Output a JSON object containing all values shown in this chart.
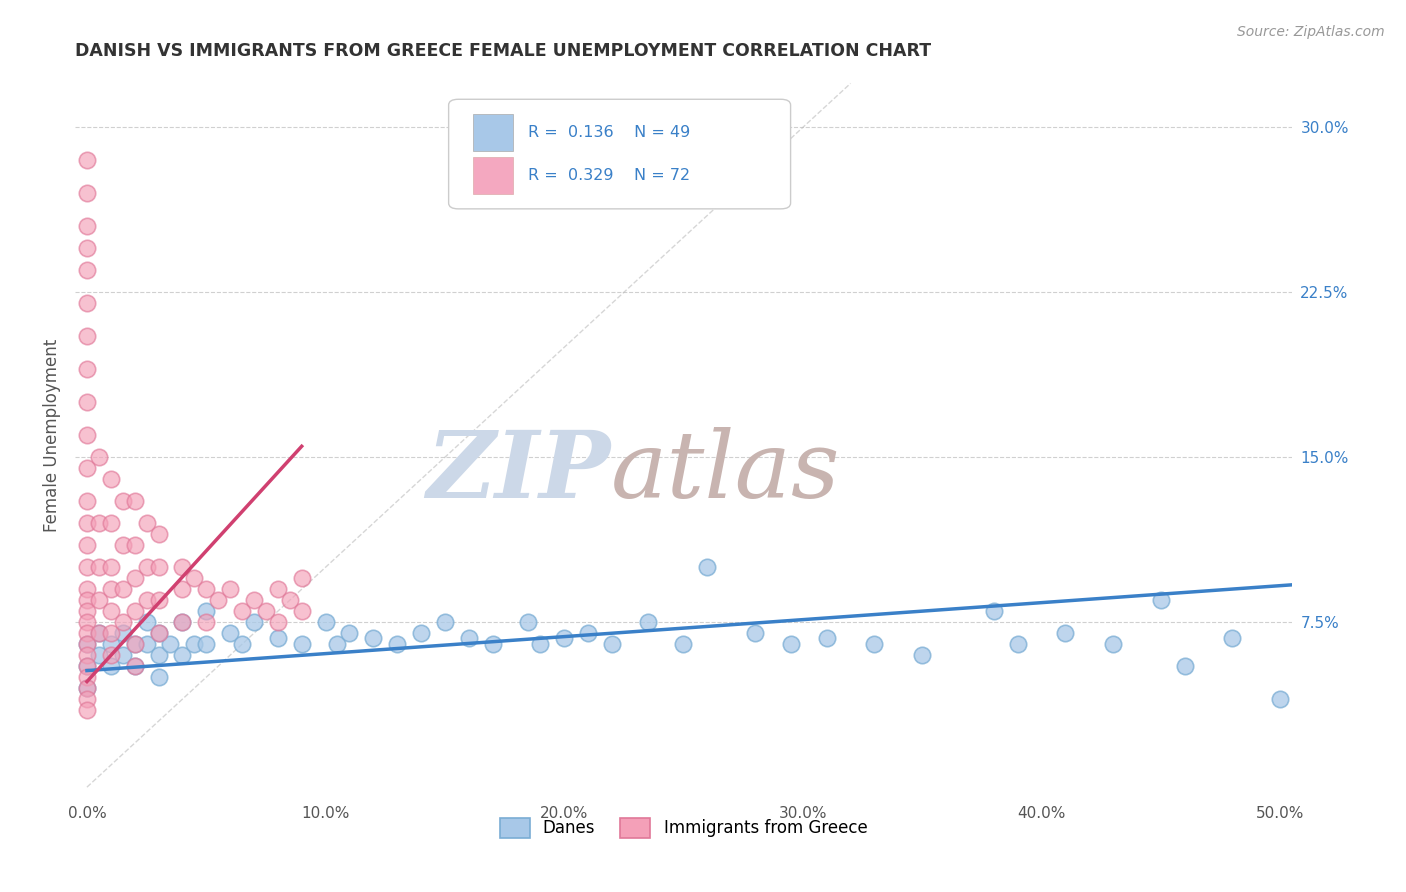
{
  "title": "DANISH VS IMMIGRANTS FROM GREECE FEMALE UNEMPLOYMENT CORRELATION CHART",
  "source": "Source: ZipAtlas.com",
  "ylabel": "Female Unemployment",
  "x_ticks": [
    "0.0%",
    "10.0%",
    "20.0%",
    "30.0%",
    "40.0%",
    "50.0%"
  ],
  "x_tick_vals": [
    0.0,
    0.1,
    0.2,
    0.3,
    0.4,
    0.5
  ],
  "y_ticks_right": [
    "7.5%",
    "15.0%",
    "22.5%",
    "30.0%"
  ],
  "y_tick_vals_right": [
    0.075,
    0.15,
    0.225,
    0.3
  ],
  "xlim": [
    -0.005,
    0.505
  ],
  "ylim": [
    -0.005,
    0.325
  ],
  "legend_color1": "#a8c8e8",
  "legend_color2": "#f4a8c0",
  "danes_color": "#a8c8e8",
  "greece_color": "#f4a0b8",
  "danes_edge_color": "#7aadd4",
  "greece_edge_color": "#e07898",
  "danes_line_color": "#3a80c8",
  "greece_line_color": "#d04070",
  "watermark_zip_color": "#ccd8e8",
  "watermark_atlas_color": "#c8b4b0",
  "background_color": "#ffffff",
  "grid_color": "#d0d0d0",
  "title_color": "#333333",
  "tick_color": "#555555",
  "source_color": "#999999",
  "danes_scatter_x": [
    0.0,
    0.0,
    0.0,
    0.005,
    0.005,
    0.01,
    0.01,
    0.015,
    0.015,
    0.02,
    0.02,
    0.025,
    0.025,
    0.03,
    0.03,
    0.03,
    0.035,
    0.04,
    0.04,
    0.045,
    0.05,
    0.05,
    0.06,
    0.065,
    0.07,
    0.08,
    0.09,
    0.1,
    0.105,
    0.11,
    0.12,
    0.13,
    0.14,
    0.15,
    0.16,
    0.17,
    0.185,
    0.19,
    0.2,
    0.21,
    0.22,
    0.235,
    0.25,
    0.26,
    0.28,
    0.295,
    0.31,
    0.33,
    0.35,
    0.38,
    0.39,
    0.41,
    0.43,
    0.45,
    0.46,
    0.48,
    0.5
  ],
  "danes_scatter_y": [
    0.065,
    0.055,
    0.045,
    0.07,
    0.06,
    0.065,
    0.055,
    0.07,
    0.06,
    0.065,
    0.055,
    0.075,
    0.065,
    0.07,
    0.06,
    0.05,
    0.065,
    0.075,
    0.06,
    0.065,
    0.08,
    0.065,
    0.07,
    0.065,
    0.075,
    0.068,
    0.065,
    0.075,
    0.065,
    0.07,
    0.068,
    0.065,
    0.07,
    0.075,
    0.068,
    0.065,
    0.075,
    0.065,
    0.068,
    0.07,
    0.065,
    0.075,
    0.065,
    0.1,
    0.07,
    0.065,
    0.068,
    0.065,
    0.06,
    0.08,
    0.065,
    0.07,
    0.065,
    0.085,
    0.055,
    0.068,
    0.04
  ],
  "greece_scatter_x": [
    0.0,
    0.0,
    0.0,
    0.0,
    0.0,
    0.0,
    0.0,
    0.0,
    0.0,
    0.0,
    0.0,
    0.0,
    0.0,
    0.0,
    0.0,
    0.0,
    0.0,
    0.0,
    0.0,
    0.0,
    0.0,
    0.0,
    0.0,
    0.0,
    0.0,
    0.0,
    0.0,
    0.005,
    0.005,
    0.005,
    0.005,
    0.005,
    0.01,
    0.01,
    0.01,
    0.01,
    0.01,
    0.01,
    0.01,
    0.015,
    0.015,
    0.015,
    0.015,
    0.02,
    0.02,
    0.02,
    0.02,
    0.02,
    0.02,
    0.025,
    0.025,
    0.025,
    0.03,
    0.03,
    0.03,
    0.03,
    0.04,
    0.04,
    0.04,
    0.045,
    0.05,
    0.05,
    0.055,
    0.06,
    0.065,
    0.07,
    0.075,
    0.08,
    0.08,
    0.085,
    0.09,
    0.09
  ],
  "greece_scatter_y": [
    0.285,
    0.27,
    0.255,
    0.245,
    0.235,
    0.22,
    0.205,
    0.19,
    0.175,
    0.16,
    0.145,
    0.13,
    0.12,
    0.11,
    0.1,
    0.09,
    0.085,
    0.08,
    0.075,
    0.07,
    0.065,
    0.06,
    0.055,
    0.05,
    0.045,
    0.04,
    0.035,
    0.15,
    0.12,
    0.1,
    0.085,
    0.07,
    0.14,
    0.12,
    0.1,
    0.09,
    0.08,
    0.07,
    0.06,
    0.13,
    0.11,
    0.09,
    0.075,
    0.13,
    0.11,
    0.095,
    0.08,
    0.065,
    0.055,
    0.12,
    0.1,
    0.085,
    0.115,
    0.1,
    0.085,
    0.07,
    0.1,
    0.09,
    0.075,
    0.095,
    0.09,
    0.075,
    0.085,
    0.09,
    0.08,
    0.085,
    0.08,
    0.09,
    0.075,
    0.085,
    0.095,
    0.08
  ],
  "danes_trend_x": [
    0.0,
    0.505
  ],
  "danes_trend_y": [
    0.053,
    0.092
  ],
  "greece_trend_x": [
    0.0,
    0.09
  ],
  "greece_trend_y": [
    0.048,
    0.155
  ],
  "diag_line_x": [
    0.0,
    0.32
  ],
  "diag_line_y": [
    0.0,
    0.32
  ]
}
